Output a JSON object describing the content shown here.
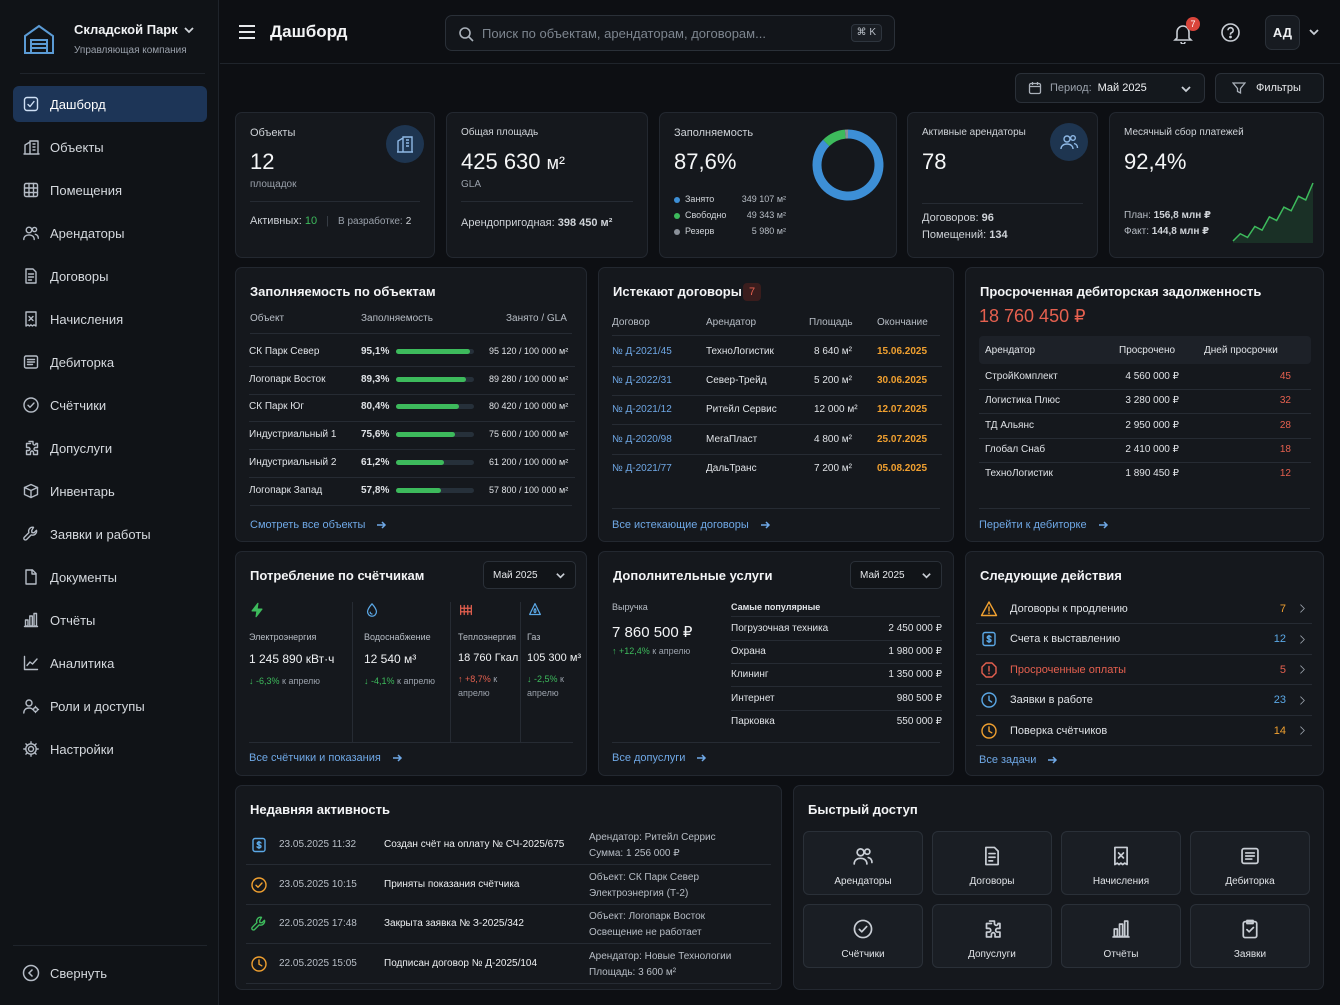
{
  "brand": {
    "name": "Складской Парк",
    "subtitle": "Управляющая компания"
  },
  "sidebar": {
    "items": [
      {
        "label": "Дашборд",
        "icon": "dashboard-icon"
      },
      {
        "label": "Объекты",
        "icon": "building-icon"
      },
      {
        "label": "Помещения",
        "icon": "grid-icon"
      },
      {
        "label": "Арендаторы",
        "icon": "users-icon"
      },
      {
        "label": "Договоры",
        "icon": "contract-icon"
      },
      {
        "label": "Начисления",
        "icon": "receipt-icon"
      },
      {
        "label": "Дебиторка",
        "icon": "ledger-icon"
      },
      {
        "label": "Счётчики",
        "icon": "meter-icon"
      },
      {
        "label": "Допуслуги",
        "icon": "puzzle-icon"
      },
      {
        "label": "Инвентарь",
        "icon": "box-icon"
      },
      {
        "label": "Заявки и работы",
        "icon": "wrench-icon"
      },
      {
        "label": "Документы",
        "icon": "document-icon"
      },
      {
        "label": "Отчёты",
        "icon": "report-icon"
      },
      {
        "label": "Аналитика",
        "icon": "analytics-icon"
      },
      {
        "label": "Роли и доступы",
        "icon": "roles-icon"
      },
      {
        "label": "Настройки",
        "icon": "gear-icon"
      }
    ],
    "collapse": "Свернуть"
  },
  "header": {
    "title": "Дашборд",
    "search_placeholder": "Поиск по объектам, арендаторам, договорам...",
    "shortcut": "⌘ K",
    "notifications": "7",
    "avatar": "АД"
  },
  "toolbar": {
    "period_label": "Период:",
    "period_value": "Май 2025",
    "filters": "Фильтры"
  },
  "kpi": {
    "objects": {
      "label": "Объекты",
      "value": "12",
      "sub": "площадок",
      "active_label": "Активных:",
      "active": "10",
      "dev_label": "В разработке:",
      "dev": "2"
    },
    "area": {
      "label": "Общая площадь",
      "value": "425 630",
      "unit": "м²",
      "sub": "GLA",
      "rentable_label": "Арендопригодная:",
      "rentable": "398 450 м²"
    },
    "occupancy": {
      "label": "Заполняемость",
      "value": "87,6%",
      "legend": [
        {
          "name": "Занято",
          "value": "349 107 м²",
          "color": "#3d8fd6",
          "share": 87.6
        },
        {
          "name": "Свободно",
          "value": "49 343 м²",
          "color": "#3dba5c",
          "share": 11.0
        },
        {
          "name": "Резерв",
          "value": "5 980 м²",
          "color": "#8a9099",
          "share": 1.4
        }
      ]
    },
    "tenants": {
      "label": "Активные арендаторы",
      "value": "78",
      "contracts_label": "Договоров:",
      "contracts": "96",
      "premises_label": "Помещений:",
      "premises": "134"
    },
    "payments": {
      "label": "Месячный сбор платежей",
      "value": "92,4%",
      "plan_label": "План:",
      "plan": "156,8 млн ₽",
      "fact_label": "Факт:",
      "fact": "144,8 млн ₽",
      "trend": [
        10,
        16,
        13,
        22,
        19,
        30,
        27,
        38,
        35,
        47,
        44,
        58
      ]
    }
  },
  "occupancy_by_object": {
    "title": "Заполняемость по объектам",
    "headers": [
      "Объект",
      "Заполняемость",
      "Занято / GLA"
    ],
    "rows": [
      {
        "name": "СК Парк Север",
        "pct": "95,1%",
        "value": 95.1,
        "area": "95 120 / 100 000 м²"
      },
      {
        "name": "Логопарк Восток",
        "pct": "89,3%",
        "value": 89.3,
        "area": "89 280 / 100 000 м²"
      },
      {
        "name": "СК Парк Юг",
        "pct": "80,4%",
        "value": 80.4,
        "area": "80 420 / 100 000 м²"
      },
      {
        "name": "Индустриальный 1",
        "pct": "75,6%",
        "value": 75.6,
        "area": "75 600 / 100 000 м²"
      },
      {
        "name": "Индустриальный 2",
        "pct": "61,2%",
        "value": 61.2,
        "area": "61 200 / 100 000 м²"
      },
      {
        "name": "Логопарк Запад",
        "pct": "57,8%",
        "value": 57.8,
        "area": "57 800 / 100 000 м²"
      }
    ],
    "link": "Смотреть все объекты"
  },
  "expiring": {
    "title": "Истекают договоры",
    "count": "7",
    "headers": [
      "Договор",
      "Арендатор",
      "Площадь",
      "Окончание"
    ],
    "rows": [
      {
        "id": "№ Д-2021/45",
        "tenant": "ТехноЛогистик",
        "area": "8 640 м²",
        "end": "15.06.2025",
        "color": "#f0a030"
      },
      {
        "id": "№ Д-2022/31",
        "tenant": "Север-Трейд",
        "area": "5 200 м²",
        "end": "30.06.2025",
        "color": "#f0a030"
      },
      {
        "id": "№ Д-2021/12",
        "tenant": "Ритейл Сервис",
        "area": "12 000 м²",
        "end": "12.07.2025",
        "color": "#f0a030"
      },
      {
        "id": "№ Д-2020/98",
        "tenant": "МегаПласт",
        "area": "4 800 м²",
        "end": "25.07.2025",
        "color": "#f0a030"
      },
      {
        "id": "№ Д-2021/77",
        "tenant": "ДальТранс",
        "area": "7 200 м²",
        "end": "05.08.2025",
        "color": "#f0a030"
      }
    ],
    "link": "Все истекающие договоры"
  },
  "debt": {
    "title": "Просроченная дебиторская задолженность",
    "total": "18 760 450 ₽",
    "headers": [
      "Арендатор",
      "Просрочено",
      "Дней просрочки"
    ],
    "rows": [
      {
        "tenant": "СтройКомплект",
        "amount": "4 560 000 ₽",
        "days": "45"
      },
      {
        "tenant": "Логистика Плюс",
        "amount": "3 280 000 ₽",
        "days": "32"
      },
      {
        "tenant": "ТД Альянс",
        "amount": "2 950 000 ₽",
        "days": "28"
      },
      {
        "tenant": "Глобал Снаб",
        "amount": "2 410 000 ₽",
        "days": "18"
      },
      {
        "tenant": "ТехноЛогистик",
        "amount": "1 890 450 ₽",
        "days": "12"
      }
    ],
    "link": "Перейти к дебиторке"
  },
  "meters": {
    "title": "Потребление по счётчикам",
    "period": "Май 2025",
    "items": [
      {
        "label": "Электроэнергия",
        "value": "1 245 890 кВт·ч",
        "delta": "↓ -6,3%",
        "suffix": " к апрелю",
        "dir": "down",
        "icon": "lightning-icon",
        "color": "#3dba5c"
      },
      {
        "label": "Водоснабжение",
        "value": "12 540 м³",
        "delta": "↓ -4,1%",
        "suffix": " к апрелю",
        "dir": "down",
        "icon": "water-drop-icon",
        "color": "#5ba8e6"
      },
      {
        "label": "Теплоэнергия",
        "value": "18 760 Гкал",
        "delta": "↑ +8,7%",
        "suffix": " к апрелю",
        "dir": "up",
        "icon": "heat-icon",
        "color": "#e5604f"
      },
      {
        "label": "Газ",
        "value": "105 300 м³",
        "delta": "↓ -2,5%",
        "suffix": " к апрелю",
        "dir": "down",
        "icon": "gas-flame-icon",
        "color": "#5ba8e6"
      }
    ],
    "link": "Все счётчики и показания"
  },
  "services": {
    "title": "Дополнительные услуги",
    "period": "Май 2025",
    "revenue_label": "Выручка",
    "revenue": "7 860 500 ₽",
    "delta": "↑ +12,4%",
    "delta_suffix": " к апрелю",
    "popular_label": "Самые популярные",
    "items": [
      {
        "name": "Погрузочная техника",
        "value": "2 450 000 ₽"
      },
      {
        "name": "Охрана",
        "value": "1 980 000 ₽"
      },
      {
        "name": "Клининг",
        "value": "1 350 000 ₽"
      },
      {
        "name": "Интернет",
        "value": "980 500 ₽"
      },
      {
        "name": "Парковка",
        "value": "550 000 ₽"
      }
    ],
    "link": "Все допуслуги"
  },
  "next_actions": {
    "title": "Следующие действия",
    "items": [
      {
        "label": "Договоры к продлению",
        "count": "7",
        "icon": "warning-icon",
        "color": "#f0a030",
        "label_color": "#e0e3e7"
      },
      {
        "label": "Счета к выставлению",
        "count": "12",
        "icon": "invoice-icon",
        "color": "#5ba8e6",
        "label_color": "#e0e3e7"
      },
      {
        "label": "Просроченные оплаты",
        "count": "5",
        "icon": "alert-icon",
        "color": "#e5604f",
        "label_color": "#e5604f"
      },
      {
        "label": "Заявки в работе",
        "count": "23",
        "icon": "tasks-icon",
        "color": "#5ba8e6",
        "label_color": "#e0e3e7"
      },
      {
        "label": "Поверка счётчиков",
        "count": "14",
        "icon": "clock-icon",
        "color": "#f0a030",
        "label_color": "#e0e3e7"
      }
    ],
    "link": "Все задачи"
  },
  "activity": {
    "title": "Недавняя активность",
    "items": [
      {
        "time": "23.05.2025 11:32",
        "text": "Создан счёт на оплату № СЧ-2025/675",
        "d1": "Арендатор: Ритейл Серрис",
        "d2": "Сумма:  1 256 000 ₽",
        "icon": "invoice-icon",
        "color": "#5ba8e6"
      },
      {
        "time": "23.05.2025 10:15",
        "text": "Приняты показания счётчика",
        "d1": "Объект:  СК Парк Север",
        "d2": "Электроэнергия (Т-2)",
        "icon": "meter-icon",
        "color": "#f0a030"
      },
      {
        "time": "22.05.2025 17:48",
        "text": "Закрыта заявка № З-2025/342",
        "d1": "Объект:  Логопарк Восток",
        "d2": "Освещение не работает",
        "icon": "wrench-icon",
        "color": "#3dba5c"
      },
      {
        "time": "22.05.2025 15:05",
        "text": "Подписан договор № Д-2025/104",
        "d1": "Арендатор: Новые Технологии",
        "d2": "Площадь:  3 600 м²",
        "icon": "clock-icon",
        "color": "#f0a030"
      }
    ]
  },
  "quick_access": {
    "title": "Быстрый доступ",
    "items": [
      {
        "label": "Арендаторы",
        "icon": "users-icon"
      },
      {
        "label": "Договоры",
        "icon": "contract-icon"
      },
      {
        "label": "Начисления",
        "icon": "receipt-icon"
      },
      {
        "label": "Дебиторка",
        "icon": "ledger-icon"
      },
      {
        "label": "Счётчики",
        "icon": "meter-icon"
      },
      {
        "label": "Допуслуги",
        "icon": "puzzle-icon"
      },
      {
        "label": "Отчёты",
        "icon": "report-icon"
      },
      {
        "label": "Заявки",
        "icon": "clipboard-icon"
      }
    ]
  }
}
